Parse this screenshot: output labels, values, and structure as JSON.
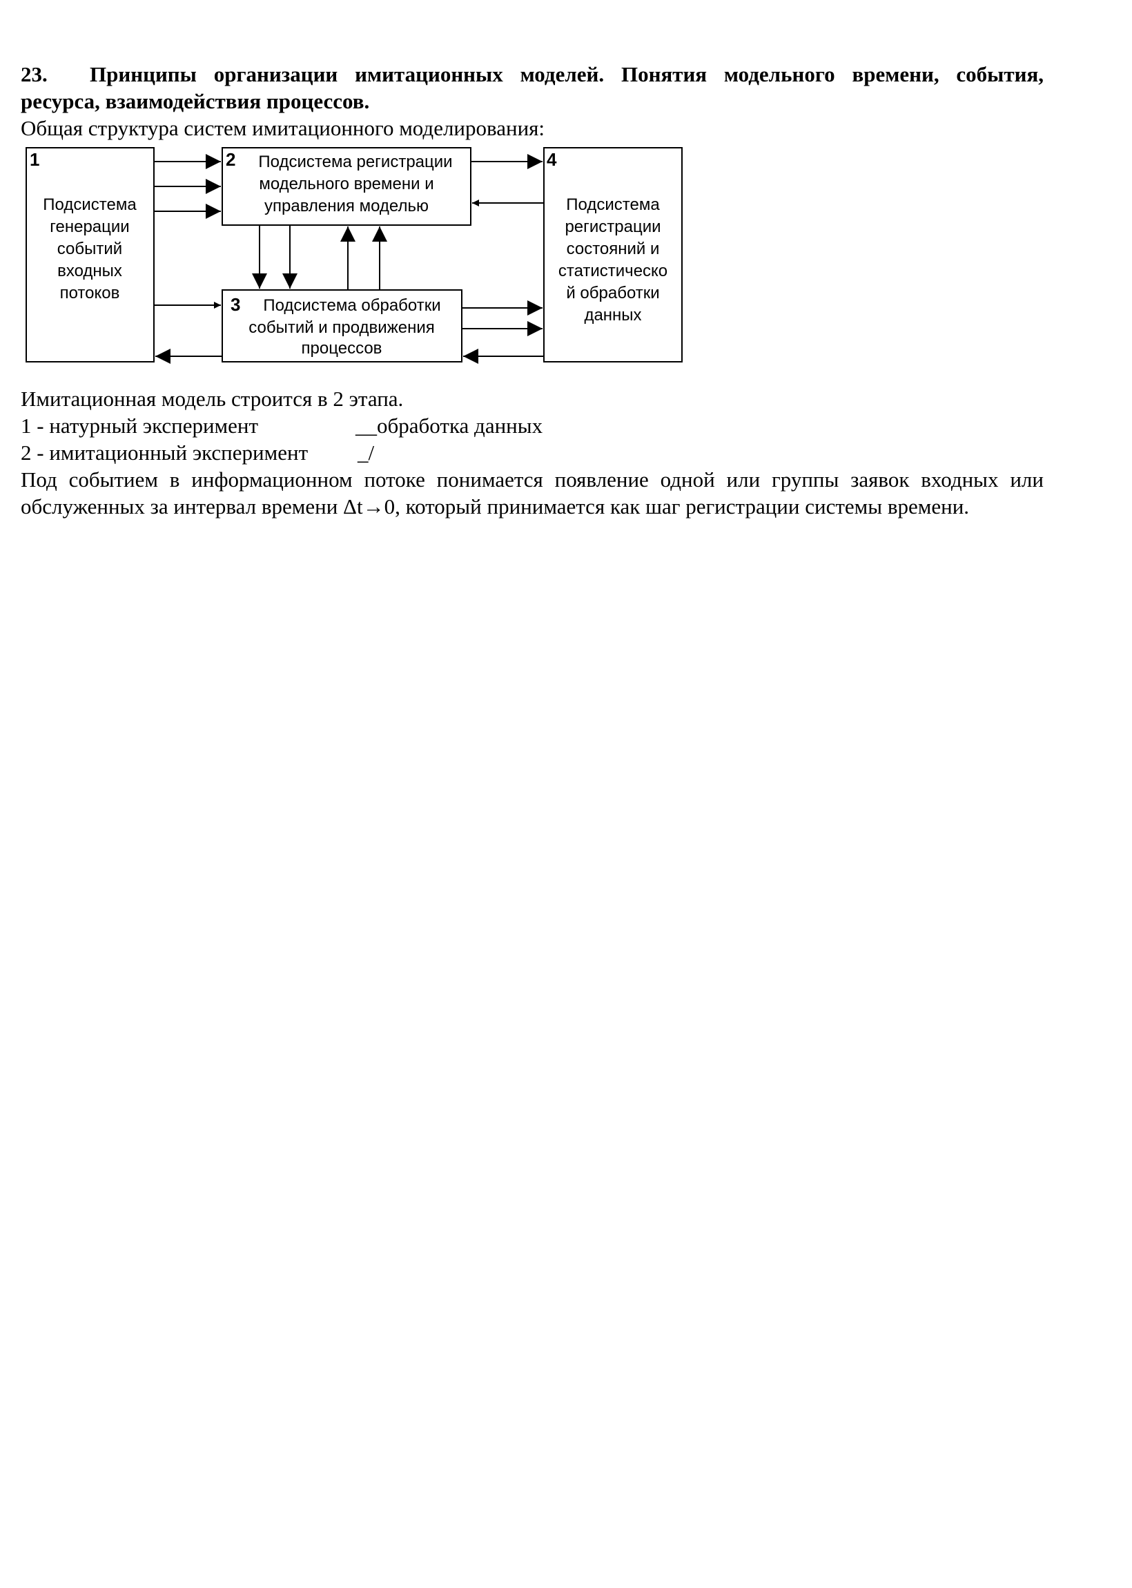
{
  "heading": {
    "number": "23.",
    "text": "Принципы организации имитационных моделей.  Понятия модельного времени, события, ресурса, взаимодействия процессов."
  },
  "intro": "Общая структура систем имитационного моделирования:",
  "diagram": {
    "box1": {
      "number": "1",
      "lines": [
        "Подсистема",
        "генерации",
        "событий",
        "входных",
        "потоков"
      ]
    },
    "box2": {
      "number": "2",
      "lines": [
        "Подсистема регистрации",
        "модельного времени и",
        "управления моделью"
      ]
    },
    "box3": {
      "number": "3",
      "lines": [
        "Подсистема обработки",
        "событий и продвижения",
        "процессов"
      ]
    },
    "box4": {
      "number": "4",
      "lines": [
        "Подсистема",
        "регистрации",
        "состояний и",
        "статистическо",
        "й обработки",
        "данных"
      ]
    }
  },
  "body": {
    "stages_intro": "Имитационная модель строится в 2 этапа.",
    "stage1": {
      "left": "1 - натурный эксперимент",
      "right": "__обработка данных"
    },
    "stage2": {
      "left": "2 - имитационный эксперимент",
      "right": "_/"
    },
    "paragraph": "Под событием в информационном потоке понимается появление одной или группы заявок входных или обслуженных за интервал времени Δt→0, который принимается как шаг регистрации системы времени."
  }
}
